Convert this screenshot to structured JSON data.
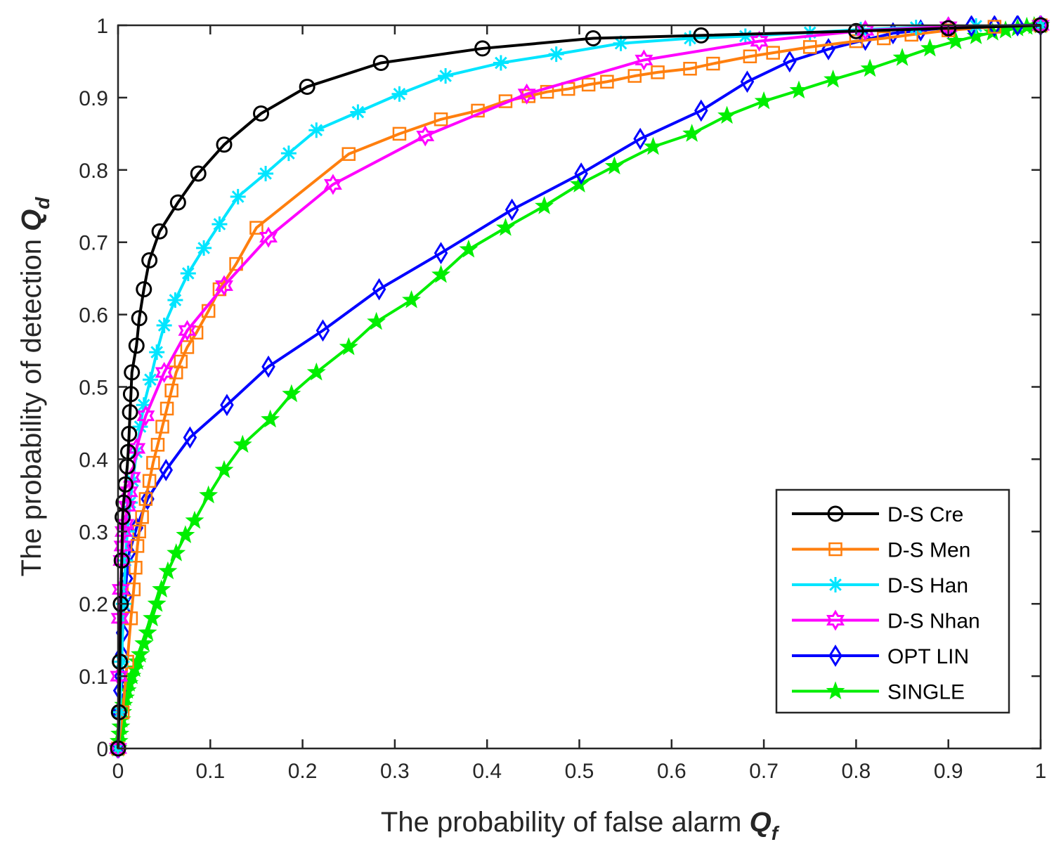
{
  "chart_data": {
    "type": "line",
    "title": "",
    "xlabel": {
      "text": "The probability of false alarm ",
      "symbol": "Q",
      "sub": "f"
    },
    "ylabel": {
      "text": "The probability of detection ",
      "symbol": "Q",
      "sub": "d"
    },
    "xlim": [
      0,
      1
    ],
    "ylim": [
      0,
      1
    ],
    "x_ticks": [
      0,
      0.1,
      0.2,
      0.3,
      0.4,
      0.5,
      0.6,
      0.7,
      0.8,
      0.9,
      1
    ],
    "x_tick_labels": [
      "0",
      "0.1",
      "0.2",
      "0.3",
      "0.4",
      "0.5",
      "0.6",
      "0.7",
      "0.8",
      "0.9",
      "1"
    ],
    "y_ticks": [
      0,
      0.1,
      0.2,
      0.3,
      0.4,
      0.5,
      0.6,
      0.7,
      0.8,
      0.9,
      1
    ],
    "y_tick_labels": [
      "0",
      "0.1",
      "0.2",
      "0.3",
      "0.4",
      "0.5",
      "0.6",
      "0.7",
      "0.8",
      "0.9",
      "1"
    ],
    "grid": false,
    "legend_position": "bottom-right",
    "series": [
      {
        "name": "D-S Cre",
        "color": "#000000",
        "marker": "circle",
        "points": [
          [
            0,
            0
          ],
          [
            0.001,
            0.05
          ],
          [
            0.002,
            0.12
          ],
          [
            0.003,
            0.2
          ],
          [
            0.004,
            0.26
          ],
          [
            0.005,
            0.32
          ],
          [
            0.006,
            0.34
          ],
          [
            0.008,
            0.365
          ],
          [
            0.01,
            0.39
          ],
          [
            0.011,
            0.41
          ],
          [
            0.012,
            0.435
          ],
          [
            0.013,
            0.465
          ],
          [
            0.014,
            0.49
          ],
          [
            0.015,
            0.52
          ],
          [
            0.02,
            0.557
          ],
          [
            0.023,
            0.595
          ],
          [
            0.028,
            0.635
          ],
          [
            0.034,
            0.675
          ],
          [
            0.045,
            0.715
          ],
          [
            0.065,
            0.755
          ],
          [
            0.087,
            0.795
          ],
          [
            0.115,
            0.835
          ],
          [
            0.155,
            0.878
          ],
          [
            0.205,
            0.915
          ],
          [
            0.285,
            0.948
          ],
          [
            0.395,
            0.968
          ],
          [
            0.515,
            0.982
          ],
          [
            0.632,
            0.986
          ],
          [
            0.8,
            0.992
          ],
          [
            0.9,
            0.996
          ],
          [
            1,
            1
          ]
        ]
      },
      {
        "name": "D-S Men",
        "color": "#ff7f0e",
        "marker": "square",
        "points": [
          [
            0,
            0
          ],
          [
            0.005,
            0.05
          ],
          [
            0.01,
            0.12
          ],
          [
            0.014,
            0.18
          ],
          [
            0.017,
            0.22
          ],
          [
            0.019,
            0.25
          ],
          [
            0.021,
            0.28
          ],
          [
            0.023,
            0.3
          ],
          [
            0.026,
            0.32
          ],
          [
            0.03,
            0.345
          ],
          [
            0.034,
            0.37
          ],
          [
            0.038,
            0.395
          ],
          [
            0.043,
            0.42
          ],
          [
            0.048,
            0.445
          ],
          [
            0.053,
            0.47
          ],
          [
            0.058,
            0.495
          ],
          [
            0.063,
            0.52
          ],
          [
            0.068,
            0.535
          ],
          [
            0.075,
            0.555
          ],
          [
            0.085,
            0.575
          ],
          [
            0.098,
            0.605
          ],
          [
            0.11,
            0.635
          ],
          [
            0.128,
            0.67
          ],
          [
            0.15,
            0.72
          ],
          [
            0.25,
            0.822
          ],
          [
            0.305,
            0.85
          ],
          [
            0.35,
            0.87
          ],
          [
            0.39,
            0.882
          ],
          [
            0.42,
            0.895
          ],
          [
            0.445,
            0.902
          ],
          [
            0.465,
            0.908
          ],
          [
            0.488,
            0.912
          ],
          [
            0.51,
            0.918
          ],
          [
            0.53,
            0.922
          ],
          [
            0.56,
            0.93
          ],
          [
            0.585,
            0.935
          ],
          [
            0.62,
            0.94
          ],
          [
            0.645,
            0.947
          ],
          [
            0.685,
            0.957
          ],
          [
            0.71,
            0.962
          ],
          [
            0.75,
            0.97
          ],
          [
            0.8,
            0.978
          ],
          [
            0.83,
            0.982
          ],
          [
            0.86,
            0.987
          ],
          [
            0.9,
            0.993
          ],
          [
            0.95,
            0.998
          ],
          [
            1,
            1
          ]
        ]
      },
      {
        "name": "D-S Han",
        "color": "#00e5ff",
        "marker": "asterisk",
        "points": [
          [
            0,
            0
          ],
          [
            0.002,
            0.05
          ],
          [
            0.004,
            0.12
          ],
          [
            0.006,
            0.2
          ],
          [
            0.008,
            0.26
          ],
          [
            0.01,
            0.3
          ],
          [
            0.013,
            0.34
          ],
          [
            0.016,
            0.37
          ],
          [
            0.02,
            0.41
          ],
          [
            0.024,
            0.445
          ],
          [
            0.028,
            0.475
          ],
          [
            0.035,
            0.51
          ],
          [
            0.042,
            0.548
          ],
          [
            0.05,
            0.585
          ],
          [
            0.062,
            0.62
          ],
          [
            0.076,
            0.657
          ],
          [
            0.093,
            0.692
          ],
          [
            0.11,
            0.725
          ],
          [
            0.13,
            0.763
          ],
          [
            0.16,
            0.795
          ],
          [
            0.185,
            0.823
          ],
          [
            0.215,
            0.855
          ],
          [
            0.26,
            0.88
          ],
          [
            0.305,
            0.905
          ],
          [
            0.355,
            0.93
          ],
          [
            0.415,
            0.948
          ],
          [
            0.475,
            0.96
          ],
          [
            0.545,
            0.975
          ],
          [
            0.62,
            0.982
          ],
          [
            0.68,
            0.985
          ],
          [
            0.75,
            0.99
          ],
          [
            0.805,
            0.994
          ],
          [
            0.865,
            0.997
          ],
          [
            0.93,
            0.999
          ],
          [
            1,
            1
          ]
        ]
      },
      {
        "name": "D-S Nhan",
        "color": "#ff00ff",
        "marker": "hexagram",
        "points": [
          [
            0,
            0
          ],
          [
            0.001,
            0.1
          ],
          [
            0.002,
            0.18
          ],
          [
            0.003,
            0.22
          ],
          [
            0.004,
            0.26
          ],
          [
            0.005,
            0.28
          ],
          [
            0.006,
            0.3
          ],
          [
            0.008,
            0.31
          ],
          [
            0.01,
            0.335
          ],
          [
            0.012,
            0.355
          ],
          [
            0.015,
            0.375
          ],
          [
            0.02,
            0.415
          ],
          [
            0.03,
            0.46
          ],
          [
            0.05,
            0.52
          ],
          [
            0.075,
            0.578
          ],
          [
            0.115,
            0.64
          ],
          [
            0.163,
            0.707
          ],
          [
            0.233,
            0.78
          ],
          [
            0.333,
            0.847
          ],
          [
            0.443,
            0.905
          ],
          [
            0.57,
            0.952
          ],
          [
            0.695,
            0.978
          ],
          [
            0.81,
            0.993
          ],
          [
            0.9,
            0.998
          ],
          [
            1,
            1
          ]
        ]
      },
      {
        "name": "OPT LIN",
        "color": "#0000ff",
        "marker": "diamond",
        "points": [
          [
            0,
            0
          ],
          [
            0.001,
            0.05
          ],
          [
            0.002,
            0.08
          ],
          [
            0.003,
            0.1
          ],
          [
            0.004,
            0.13
          ],
          [
            0.005,
            0.16
          ],
          [
            0.006,
            0.19
          ],
          [
            0.008,
            0.21
          ],
          [
            0.009,
            0.235
          ],
          [
            0.012,
            0.27
          ],
          [
            0.02,
            0.305
          ],
          [
            0.032,
            0.345
          ],
          [
            0.052,
            0.385
          ],
          [
            0.078,
            0.43
          ],
          [
            0.118,
            0.475
          ],
          [
            0.163,
            0.528
          ],
          [
            0.222,
            0.578
          ],
          [
            0.283,
            0.635
          ],
          [
            0.35,
            0.685
          ],
          [
            0.427,
            0.745
          ],
          [
            0.502,
            0.795
          ],
          [
            0.566,
            0.843
          ],
          [
            0.632,
            0.882
          ],
          [
            0.682,
            0.922
          ],
          [
            0.728,
            0.95
          ],
          [
            0.77,
            0.967
          ],
          [
            0.81,
            0.98
          ],
          [
            0.84,
            0.989
          ],
          [
            0.87,
            0.993
          ],
          [
            0.9,
            0.997
          ],
          [
            0.925,
            0.999
          ],
          [
            0.95,
            0.999
          ],
          [
            0.975,
            1
          ],
          [
            1,
            1
          ]
        ]
      },
      {
        "name": "SINGLE",
        "color": "#00ee00",
        "marker": "pentagram",
        "points": [
          [
            0,
            0
          ],
          [
            0.001,
            0.01
          ],
          [
            0.002,
            0.02
          ],
          [
            0.003,
            0.03
          ],
          [
            0.004,
            0.04
          ],
          [
            0.005,
            0.05
          ],
          [
            0.006,
            0.06
          ],
          [
            0.008,
            0.07
          ],
          [
            0.01,
            0.08
          ],
          [
            0.012,
            0.09
          ],
          [
            0.015,
            0.1
          ],
          [
            0.018,
            0.11
          ],
          [
            0.021,
            0.12
          ],
          [
            0.024,
            0.13
          ],
          [
            0.028,
            0.145
          ],
          [
            0.032,
            0.16
          ],
          [
            0.037,
            0.18
          ],
          [
            0.042,
            0.2
          ],
          [
            0.047,
            0.22
          ],
          [
            0.054,
            0.245
          ],
          [
            0.063,
            0.27
          ],
          [
            0.073,
            0.295
          ],
          [
            0.083,
            0.315
          ],
          [
            0.098,
            0.35
          ],
          [
            0.115,
            0.385
          ],
          [
            0.135,
            0.42
          ],
          [
            0.165,
            0.455
          ],
          [
            0.188,
            0.49
          ],
          [
            0.215,
            0.52
          ],
          [
            0.25,
            0.555
          ],
          [
            0.28,
            0.59
          ],
          [
            0.318,
            0.62
          ],
          [
            0.35,
            0.655
          ],
          [
            0.38,
            0.69
          ],
          [
            0.42,
            0.72
          ],
          [
            0.462,
            0.75
          ],
          [
            0.5,
            0.78
          ],
          [
            0.538,
            0.805
          ],
          [
            0.58,
            0.832
          ],
          [
            0.622,
            0.85
          ],
          [
            0.66,
            0.875
          ],
          [
            0.7,
            0.895
          ],
          [
            0.738,
            0.91
          ],
          [
            0.775,
            0.925
          ],
          [
            0.815,
            0.94
          ],
          [
            0.85,
            0.955
          ],
          [
            0.88,
            0.968
          ],
          [
            0.908,
            0.978
          ],
          [
            0.93,
            0.985
          ],
          [
            0.948,
            0.99
          ],
          [
            0.962,
            0.993
          ],
          [
            0.975,
            0.996
          ],
          [
            0.985,
            0.998
          ],
          [
            0.993,
            0.999
          ],
          [
            1,
            1
          ]
        ]
      }
    ]
  }
}
